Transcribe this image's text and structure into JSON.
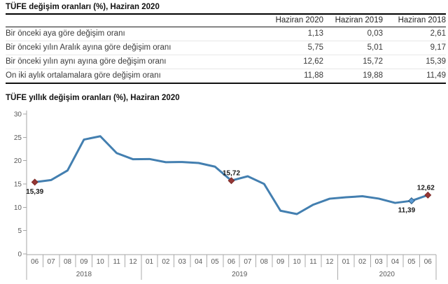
{
  "chart_data": [
    {
      "type": "table",
      "title": "TÜFE değişim oranları (%), Haziran 2020",
      "columns": [
        "",
        "Haziran 2020",
        "Haziran 2019",
        "Haziran 2018"
      ],
      "rows": [
        [
          "Bir önceki aya göre değişim oranı",
          "1,13",
          "0,03",
          "2,61"
        ],
        [
          "Bir önceki yılın Aralık ayına göre değişim oranı",
          "5,75",
          "5,01",
          "9,17"
        ],
        [
          "Bir önceki yılın aynı ayına göre değişim oranı",
          "12,62",
          "15,72",
          "15,39"
        ],
        [
          "On iki aylık ortalamalara göre değişim oranı",
          "11,88",
          "19,88",
          "11,49"
        ]
      ]
    },
    {
      "type": "line",
      "title": "TÜFE yıllık değişim oranları (%), Haziran 2020",
      "xlabel": "",
      "ylabel": "",
      "ylim": [
        0,
        30
      ],
      "yticks": [
        0,
        5,
        10,
        15,
        20,
        25,
        30
      ],
      "grid": false,
      "legend": "none",
      "categories_months": [
        "06",
        "07",
        "08",
        "09",
        "10",
        "11",
        "12",
        "01",
        "02",
        "03",
        "04",
        "05",
        "06",
        "07",
        "08",
        "09",
        "10",
        "11",
        "12",
        "01",
        "02",
        "03",
        "04",
        "05",
        "06"
      ],
      "year_groups": [
        {
          "label": "2018",
          "months": 7
        },
        {
          "label": "2019",
          "months": 12
        },
        {
          "label": "2020",
          "months": 6
        }
      ],
      "series": [
        {
          "values": [
            15.39,
            15.85,
            17.9,
            24.52,
            25.24,
            21.62,
            20.3,
            20.35,
            19.67,
            19.71,
            19.5,
            18.71,
            15.72,
            16.65,
            15.01,
            9.26,
            8.55,
            10.56,
            11.84,
            12.15,
            12.37,
            11.86,
            10.94,
            11.39,
            12.62
          ]
        }
      ],
      "annotations": [
        {
          "index": 0,
          "label": "15,39",
          "marker": "#953735",
          "marker_stroke": "#7c2a28",
          "label_position": "below",
          "dx": 0
        },
        {
          "index": 12,
          "label": "15,72",
          "marker": "#953735",
          "marker_stroke": "#7c2a28",
          "label_position": "above",
          "dx": 0
        },
        {
          "index": 23,
          "label": "11,39",
          "marker": "#5b9bd5",
          "marker_stroke": "#2e5f86",
          "label_position": "below",
          "dx": -7
        },
        {
          "index": 24,
          "label": "12,62",
          "marker": "#953735",
          "marker_stroke": "#7c2a28",
          "label_position": "above",
          "dx": -3
        }
      ]
    }
  ],
  "colors": {
    "line": "#437fb0",
    "axis": "#a6a6a6",
    "band_line": "#ababab",
    "axis_text": "#595959",
    "data_label_text": "#1a1a1a"
  }
}
